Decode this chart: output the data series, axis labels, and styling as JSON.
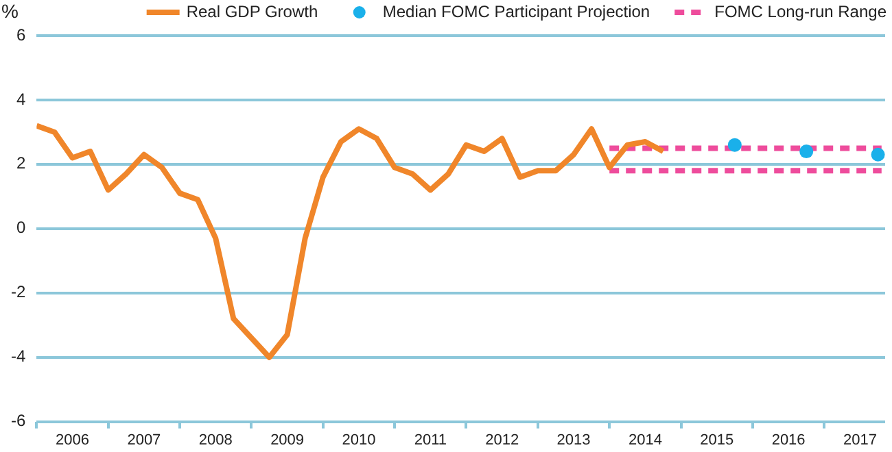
{
  "chart_data": {
    "type": "line",
    "ylabel": "%",
    "xlim": [
      2006,
      2017.85
    ],
    "xticks": [
      {
        "value": 2006,
        "label": null
      },
      {
        "value": 2006.5,
        "label": "2006"
      },
      {
        "value": 2007,
        "label": null
      },
      {
        "value": 2007.5,
        "label": "2007"
      },
      {
        "value": 2008,
        "label": null
      },
      {
        "value": 2008.5,
        "label": "2008"
      },
      {
        "value": 2009,
        "label": null
      },
      {
        "value": 2009.5,
        "label": "2009"
      },
      {
        "value": 2010,
        "label": null
      },
      {
        "value": 2010.5,
        "label": "2010"
      },
      {
        "value": 2011,
        "label": null
      },
      {
        "value": 2011.5,
        "label": "2011"
      },
      {
        "value": 2012,
        "label": null
      },
      {
        "value": 2012.5,
        "label": "2012"
      },
      {
        "value": 2013,
        "label": null
      },
      {
        "value": 2013.5,
        "label": "2013"
      },
      {
        "value": 2014,
        "label": null
      },
      {
        "value": 2014.5,
        "label": "2014"
      },
      {
        "value": 2015,
        "label": null
      },
      {
        "value": 2015.5,
        "label": "2015"
      },
      {
        "value": 2016,
        "label": null
      },
      {
        "value": 2016.5,
        "label": "2016"
      },
      {
        "value": 2017,
        "label": null
      },
      {
        "value": 2017.5,
        "label": "2017"
      }
    ],
    "ylim": [
      -6,
      6
    ],
    "yticks": [
      -6,
      -4,
      -2,
      0,
      2,
      4,
      6
    ],
    "grid": "y",
    "legend": "top right",
    "series": [
      {
        "name": "Real GDP Growth",
        "color": "#f0862a",
        "line_style": "solid",
        "marker": "none",
        "x": [
          2006,
          2006.25,
          2006.5,
          2006.75,
          2007,
          2007.25,
          2007.5,
          2007.75,
          2008,
          2008.25,
          2008.5,
          2008.75,
          2009,
          2009.25,
          2009.5,
          2009.75,
          2010,
          2010.25,
          2010.5,
          2010.75,
          2011,
          2011.25,
          2011.5,
          2011.75,
          2012,
          2012.25,
          2012.5,
          2012.75,
          2013,
          2013.25,
          2013.5,
          2013.75,
          2014,
          2014.25,
          2014.5,
          2014.75
        ],
        "values": [
          3.2,
          3.0,
          2.2,
          2.4,
          1.2,
          1.7,
          2.3,
          1.9,
          1.1,
          0.9,
          -0.3,
          -2.8,
          -3.4,
          -4.0,
          -3.3,
          -0.3,
          1.6,
          2.7,
          3.1,
          2.8,
          1.9,
          1.7,
          1.2,
          1.7,
          2.6,
          2.4,
          2.8,
          1.6,
          1.8,
          1.8,
          2.3,
          3.1,
          1.9,
          2.6,
          2.7,
          2.4
        ]
      },
      {
        "name": "Median FOMC Participant Projection",
        "type": "scatter",
        "color": "#1ab0ea",
        "marker": "circle",
        "x": [
          2015.75,
          2016.75,
          2017.75
        ],
        "values": [
          2.6,
          2.4,
          2.3
        ]
      },
      {
        "name": "FOMC Long-run Range",
        "color": "#ee4c9c",
        "line_style": "dashed",
        "marker": "none",
        "x": [
          2014,
          2017.8
        ],
        "values": [
          2.5,
          2.5
        ]
      },
      {
        "color": "#ee4c9c",
        "line_style": "dashed",
        "marker": "none",
        "x": [
          2014,
          2017.8
        ],
        "values": [
          1.8,
          1.8
        ]
      }
    ]
  }
}
